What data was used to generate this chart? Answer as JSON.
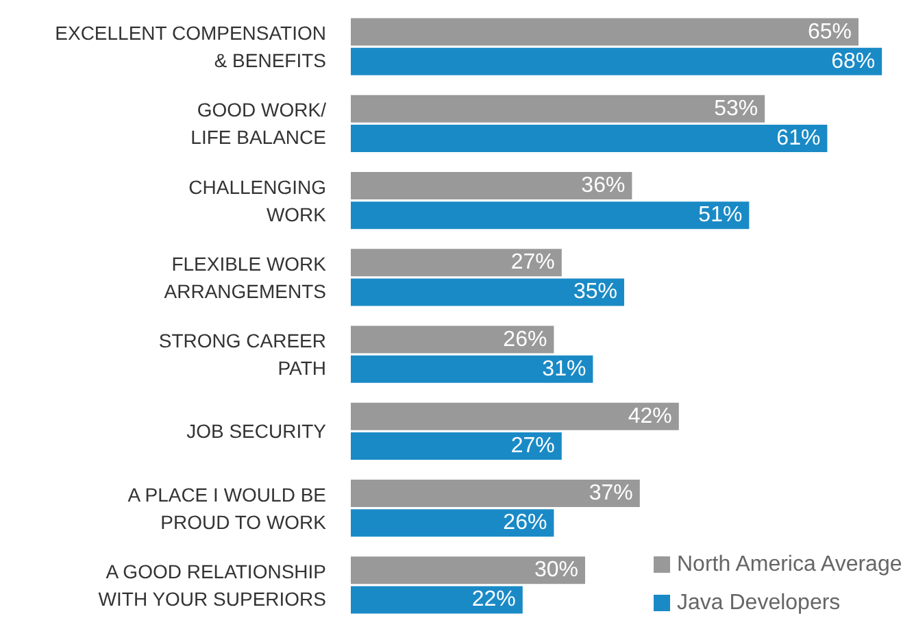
{
  "chart_data": {
    "type": "bar",
    "orientation": "horizontal",
    "categories": [
      "EXCELLENT COMPENSATION\n& BENEFITS",
      "GOOD WORK/\nLIFE BALANCE",
      "CHALLENGING\nWORK",
      "FLEXIBLE WORK\nARRANGEMENTS",
      "STRONG CAREER\nPATH",
      "JOB SECURITY",
      "A PLACE I WOULD BE\nPROUD TO WORK",
      "A GOOD RELATIONSHIP\nWITH YOUR SUPERIORS"
    ],
    "series": [
      {
        "name": "North America Average",
        "color": "#999999",
        "values": [
          65,
          53,
          36,
          27,
          26,
          42,
          37,
          30
        ],
        "value_labels": [
          "65%",
          "53%",
          "36%",
          "27%",
          "26%",
          "42%",
          "37%",
          "30%"
        ]
      },
      {
        "name": "Java Developers",
        "color": "#1a8ac6",
        "values": [
          68,
          61,
          51,
          35,
          31,
          27,
          26,
          22
        ],
        "value_labels": [
          "68%",
          "61%",
          "51%",
          "35%",
          "31%",
          "27%",
          "26%",
          "22%"
        ]
      }
    ],
    "legend": "bottom right",
    "grid": false
  }
}
